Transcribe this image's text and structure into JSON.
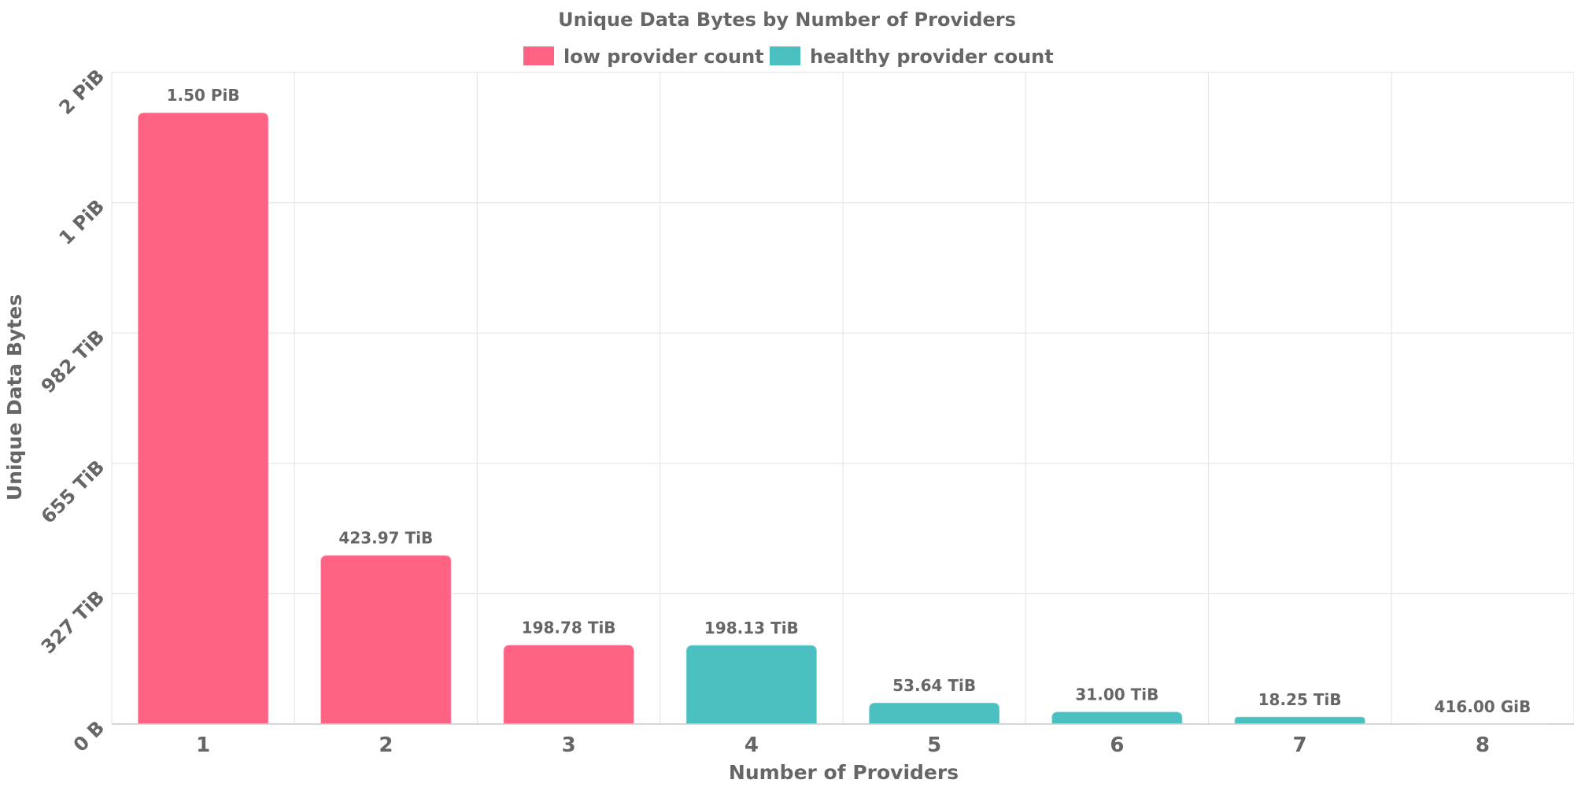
{
  "chart_data": {
    "type": "bar",
    "title": "Unique Data Bytes by Number of Providers",
    "xlabel": "Number of Providers",
    "ylabel": "Unique Data Bytes",
    "categories": [
      "1",
      "2",
      "3",
      "4",
      "5",
      "6",
      "7",
      "8"
    ],
    "values_tib": [
      1536,
      423.97,
      198.78,
      198.13,
      53.64,
      31.0,
      18.25,
      0.40625
    ],
    "value_labels": [
      "1.50 PiB",
      "423.97 TiB",
      "198.78 TiB",
      "198.13 TiB",
      "53.64 TiB",
      "31.00 TiB",
      "18.25 TiB",
      "416.00 GiB"
    ],
    "groups": [
      "low",
      "low",
      "low",
      "healthy",
      "healthy",
      "healthy",
      "healthy",
      "healthy"
    ],
    "ylim_tib": [
      0,
      1637
    ],
    "y_ticks": [
      {
        "value_tib": 0,
        "label": "0 B"
      },
      {
        "value_tib": 327.4,
        "label": "327 TiB"
      },
      {
        "value_tib": 654.8,
        "label": "655 TiB"
      },
      {
        "value_tib": 982.2,
        "label": "982 TiB"
      },
      {
        "value_tib": 1309.6,
        "label": "1 PiB"
      },
      {
        "value_tib": 1637,
        "label": "2 PiB"
      }
    ],
    "legend": {
      "position": "top-center",
      "items": [
        {
          "key": "low",
          "label": "low provider count",
          "color": "#ff6384"
        },
        {
          "key": "healthy",
          "label": "healthy provider count",
          "color": "#4bc0c0"
        }
      ]
    },
    "grid": true
  }
}
